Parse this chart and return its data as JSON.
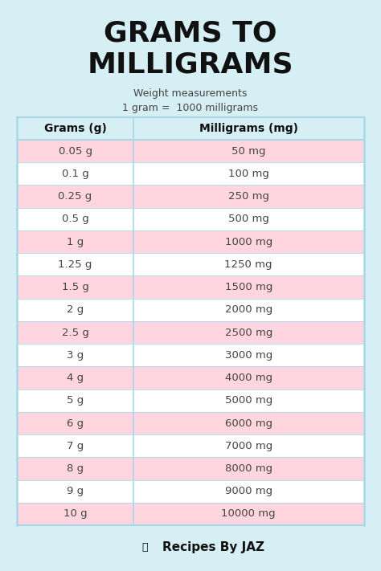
{
  "title_line1": "GRAMS TO",
  "title_line2": "MILLIGRAMS",
  "subtitle_line1": "Weight measurements",
  "subtitle_line2": "1 gram =  1000 milligrams",
  "col1_header": "Grams (g)",
  "col2_header": "Milligrams (mg)",
  "rows": [
    [
      "0.05 g",
      "50 mg"
    ],
    [
      "0.1 g",
      "100 mg"
    ],
    [
      "0.25 g",
      "250 mg"
    ],
    [
      "0.5 g",
      "500 mg"
    ],
    [
      "1 g",
      "1000 mg"
    ],
    [
      "1.25 g",
      "1250 mg"
    ],
    [
      "1.5 g",
      "1500 mg"
    ],
    [
      "2 g",
      "2000 mg"
    ],
    [
      "2.5 g",
      "2500 mg"
    ],
    [
      "3 g",
      "3000 mg"
    ],
    [
      "4 g",
      "4000 mg"
    ],
    [
      "5 g",
      "5000 mg"
    ],
    [
      "6 g",
      "6000 mg"
    ],
    [
      "7 g",
      "7000 mg"
    ],
    [
      "8 g",
      "8000 mg"
    ],
    [
      "9 g",
      "9000 mg"
    ],
    [
      "10 g",
      "10000 mg"
    ]
  ],
  "bg_color": "#d6eff5",
  "row_color_even": "#ffd6e0",
  "row_color_odd": "#ffffff",
  "header_bg": "#d6eff5",
  "title_color": "#111111",
  "text_color": "#444444",
  "header_text_color": "#111111",
  "border_color": "#a8d8e8",
  "footer_text": "Recipes By JAZ",
  "footer_color": "#111111",
  "title_fontsize": 26,
  "subtitle_fontsize": 9,
  "header_fontsize": 10,
  "row_fontsize": 9.5,
  "footer_fontsize": 11
}
